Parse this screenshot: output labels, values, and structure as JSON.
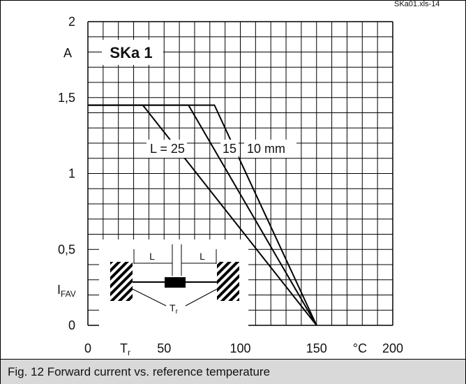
{
  "source_label": "SKa01.xls-14",
  "caption": "Fig. 12 Forward current vs. reference temperature",
  "chart_data": {
    "type": "line",
    "title": "SKa 1",
    "x_unit_label": "°C",
    "y_unit_label": "A",
    "y_axis_symbol": {
      "main": "I",
      "sub": "FAV"
    },
    "x_axis_symbol": {
      "main": "T",
      "sub": "r"
    },
    "xlim": [
      0,
      200
    ],
    "ylim": [
      0,
      2
    ],
    "x_ticks": [
      {
        "value": 0,
        "label": "0"
      },
      {
        "value": 50,
        "label": "50"
      },
      {
        "value": 100,
        "label": "100"
      },
      {
        "value": 150,
        "label": "150"
      },
      {
        "value": 200,
        "label": "200"
      }
    ],
    "y_ticks": [
      {
        "value": 0,
        "label": "0"
      },
      {
        "value": 0.5,
        "label": "0,5"
      },
      {
        "value": 1,
        "label": "1"
      },
      {
        "value": 1.5,
        "label": "1,5"
      },
      {
        "value": 2,
        "label": "2"
      }
    ],
    "grid": true,
    "grid_step_x": 10,
    "grid_step_y": 0.1,
    "series": [
      {
        "name": "L = 25",
        "points": [
          [
            0,
            1.45
          ],
          [
            36,
            1.45
          ],
          [
            150,
            0
          ]
        ]
      },
      {
        "name": "15",
        "points": [
          [
            0,
            1.45
          ],
          [
            66,
            1.45
          ],
          [
            150,
            0
          ]
        ]
      },
      {
        "name": "10 mm",
        "points": [
          [
            0,
            1.45
          ],
          [
            83,
            1.45
          ],
          [
            150,
            0
          ]
        ]
      }
    ],
    "series_labels": [
      "L = 25",
      "15",
      "10 mm"
    ],
    "inset": {
      "dimension_label_left": "L",
      "dimension_label_right": "L",
      "temperature_symbol": {
        "main": "T",
        "sub": "r"
      }
    },
    "colors": {
      "line": "#000000",
      "grid": "#000000",
      "caption_bg": "#d9d9d9"
    }
  }
}
